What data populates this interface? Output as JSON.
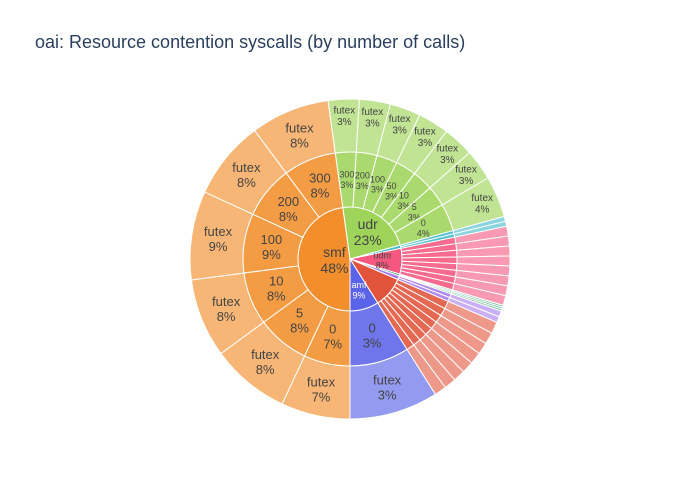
{
  "chart_data": {
    "type": "sunburst",
    "title": "oai: Resource contention syscalls (by number of calls)",
    "grid": false,
    "legend": "none",
    "colors": {
      "smf": "#f28e2b",
      "udr": "#9ed45a",
      "udm": "#f5577f",
      "amf": "#5b63e8",
      "red_group": "#e2533c",
      "cyan_group": "#3fb9c9",
      "purple_group": "#a679f0",
      "teal_group": "#2fa06a"
    },
    "rings": [
      {
        "level": "service",
        "segments": [
          {
            "id": "smf",
            "label": "smf",
            "percent": 48,
            "color": "#f28e2b"
          },
          {
            "id": "udr",
            "label": "udr",
            "percent": 23,
            "color": "#9ed45a"
          },
          {
            "id": "cyan",
            "label": "",
            "percent": 1,
            "color": "#3fb9c9"
          },
          {
            "id": "udm",
            "label": "udm",
            "percent": 8,
            "color": "#f5577f"
          },
          {
            "id": "teal",
            "label": "",
            "percent": 0.6,
            "color": "#2fa06a"
          },
          {
            "id": "purple",
            "label": "",
            "percent": 1.2,
            "color": "#a679f0"
          },
          {
            "id": "red",
            "label": "",
            "percent": 9.6,
            "color": "#e2533c"
          },
          {
            "id": "amf",
            "label": "amf",
            "percent": 9,
            "color": "#5b63e8"
          }
        ]
      }
    ],
    "smf_children": [
      {
        "label": "0",
        "percent": 7,
        "leaf": {
          "label": "futex",
          "percent": 7
        }
      },
      {
        "label": "5",
        "percent": 8,
        "leaf": {
          "label": "futex",
          "percent": 8
        }
      },
      {
        "label": "10",
        "percent": 8,
        "leaf": {
          "label": "futex",
          "percent": 8
        }
      },
      {
        "label": "100",
        "percent": 9,
        "leaf": {
          "label": "futex",
          "percent": 9
        }
      },
      {
        "label": "200",
        "percent": 8,
        "leaf": {
          "label": "futex",
          "percent": 8
        }
      },
      {
        "label": "300",
        "percent": 8,
        "leaf": {
          "label": "futex",
          "percent": 8
        }
      }
    ],
    "udr_children": [
      {
        "label": "300",
        "percent": 3,
        "leaf": {
          "label": "futex",
          "percent": 3
        }
      },
      {
        "label": "200",
        "percent": 3,
        "leaf": {
          "label": "futex",
          "percent": 3
        }
      },
      {
        "label": "100",
        "percent": 3,
        "leaf": {
          "label": "futex",
          "percent": 3
        }
      },
      {
        "label": "50",
        "percent": 3,
        "leaf": {
          "label": "futex",
          "percent": 3
        }
      },
      {
        "label": "10",
        "percent": 3,
        "leaf": {
          "label": "futex",
          "percent": 3
        }
      },
      {
        "label": "5",
        "percent": 3,
        "leaf": {
          "label": "futex",
          "percent": 3
        }
      },
      {
        "label": "0",
        "percent": 4,
        "leaf": {
          "label": "futex",
          "percent": 4
        }
      }
    ],
    "amf_children": [
      {
        "label": "0",
        "percent": 3,
        "leaf": {
          "label": "futex",
          "percent": 3
        }
      }
    ]
  }
}
